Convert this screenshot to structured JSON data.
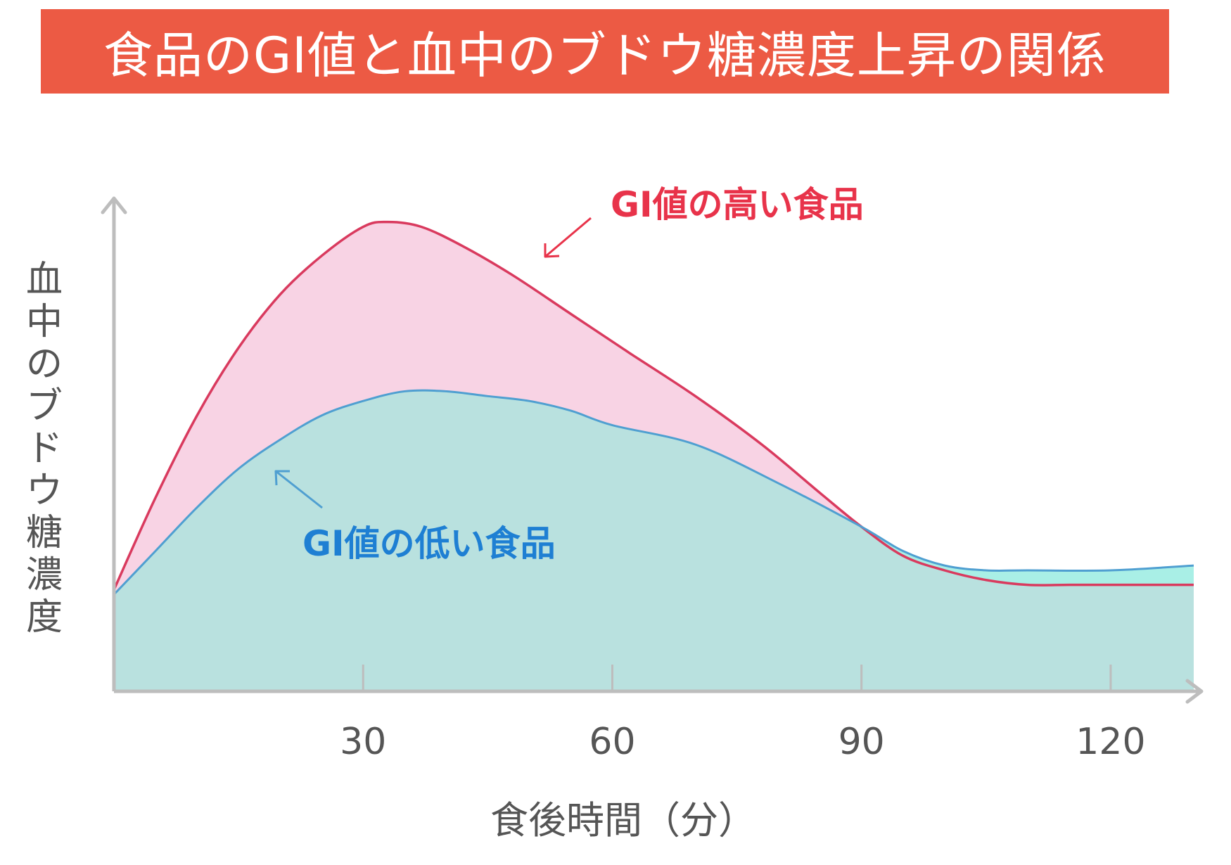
{
  "colors": {
    "banner": "#ec5a44",
    "high_line": "#d93a5e",
    "high_fill": "#f8d3e4",
    "low_line": "#4f9fd1",
    "low_fill": "#b9e1df",
    "low_fill_tail": "#a9efe6",
    "axis": "#bdbdbd",
    "text": "#555555",
    "label_high": "#e8334a",
    "label_low": "#1e7fd3"
  },
  "chart_data": {
    "type": "area",
    "title": "食品のGI値と血中のブドウ糖濃度上昇の関係",
    "xlabel": "食後時間（分）",
    "ylabel": "血中のブドウ糖濃度",
    "xlim": [
      0,
      130
    ],
    "ylim": [
      0,
      100
    ],
    "xticks": [
      30,
      60,
      90,
      120
    ],
    "xtick_labels": [
      "30",
      "60",
      "90",
      "120"
    ],
    "grid": false,
    "series": [
      {
        "name": "GI値の高い食品",
        "x": [
          0,
          5,
          10,
          15,
          20,
          25,
          30,
          33,
          37,
          42,
          48,
          55,
          62,
          70,
          78,
          85,
          90,
          95,
          100,
          105,
          110,
          115,
          120,
          125,
          130
        ],
        "y": [
          21,
          40,
          57,
          71,
          82,
          90,
          96,
          97,
          96,
          92,
          86,
          78,
          70,
          61,
          51,
          41,
          34,
          28,
          25,
          23,
          22,
          22,
          22,
          22,
          22
        ]
      },
      {
        "name": "GI値の低い食品",
        "x": [
          0,
          5,
          10,
          15,
          20,
          25,
          30,
          35,
          40,
          45,
          50,
          55,
          60,
          70,
          80,
          90,
          95,
          100,
          105,
          110,
          120,
          130
        ],
        "y": [
          20,
          29,
          38,
          46,
          52,
          57,
          60,
          62,
          62,
          61,
          60,
          58,
          55,
          51,
          43,
          34,
          29,
          26,
          25,
          25,
          25,
          26
        ]
      }
    ]
  }
}
